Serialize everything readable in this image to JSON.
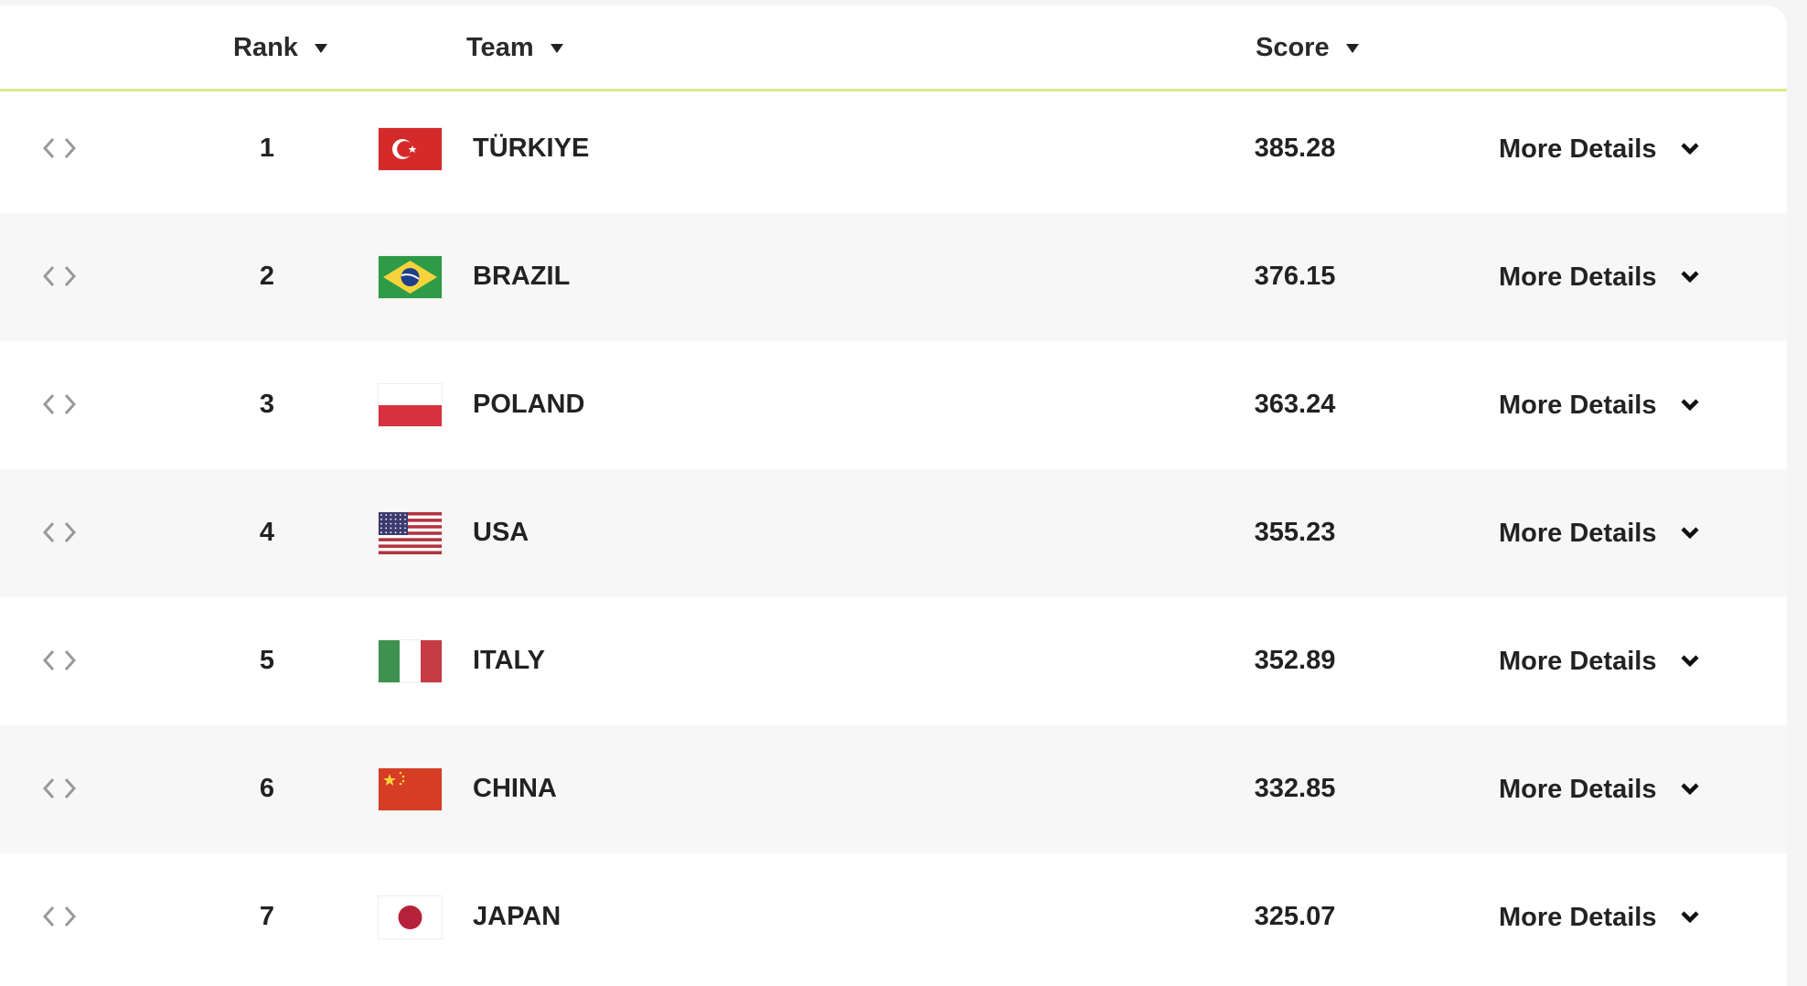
{
  "header": {
    "rank": "Rank",
    "team": "Team",
    "score": "Score"
  },
  "colors": {
    "accent_line": "#dbe98a",
    "row_alt": "#f7f7f7"
  },
  "rows": [
    {
      "rank": "1",
      "team": "TÜRKIYE",
      "flag": "turkey-flag",
      "score": "385.28",
      "details": "More Details"
    },
    {
      "rank": "2",
      "team": "BRAZIL",
      "flag": "brazil-flag",
      "score": "376.15",
      "details": "More Details"
    },
    {
      "rank": "3",
      "team": "POLAND",
      "flag": "poland-flag",
      "score": "363.24",
      "details": "More Details"
    },
    {
      "rank": "4",
      "team": "USA",
      "flag": "usa-flag",
      "score": "355.23",
      "details": "More Details"
    },
    {
      "rank": "5",
      "team": "ITALY",
      "flag": "italy-flag",
      "score": "352.89",
      "details": "More Details"
    },
    {
      "rank": "6",
      "team": "CHINA",
      "flag": "china-flag",
      "score": "332.85",
      "details": "More Details"
    },
    {
      "rank": "7",
      "team": "JAPAN",
      "flag": "japan-flag",
      "score": "325.07",
      "details": "More Details"
    }
  ]
}
